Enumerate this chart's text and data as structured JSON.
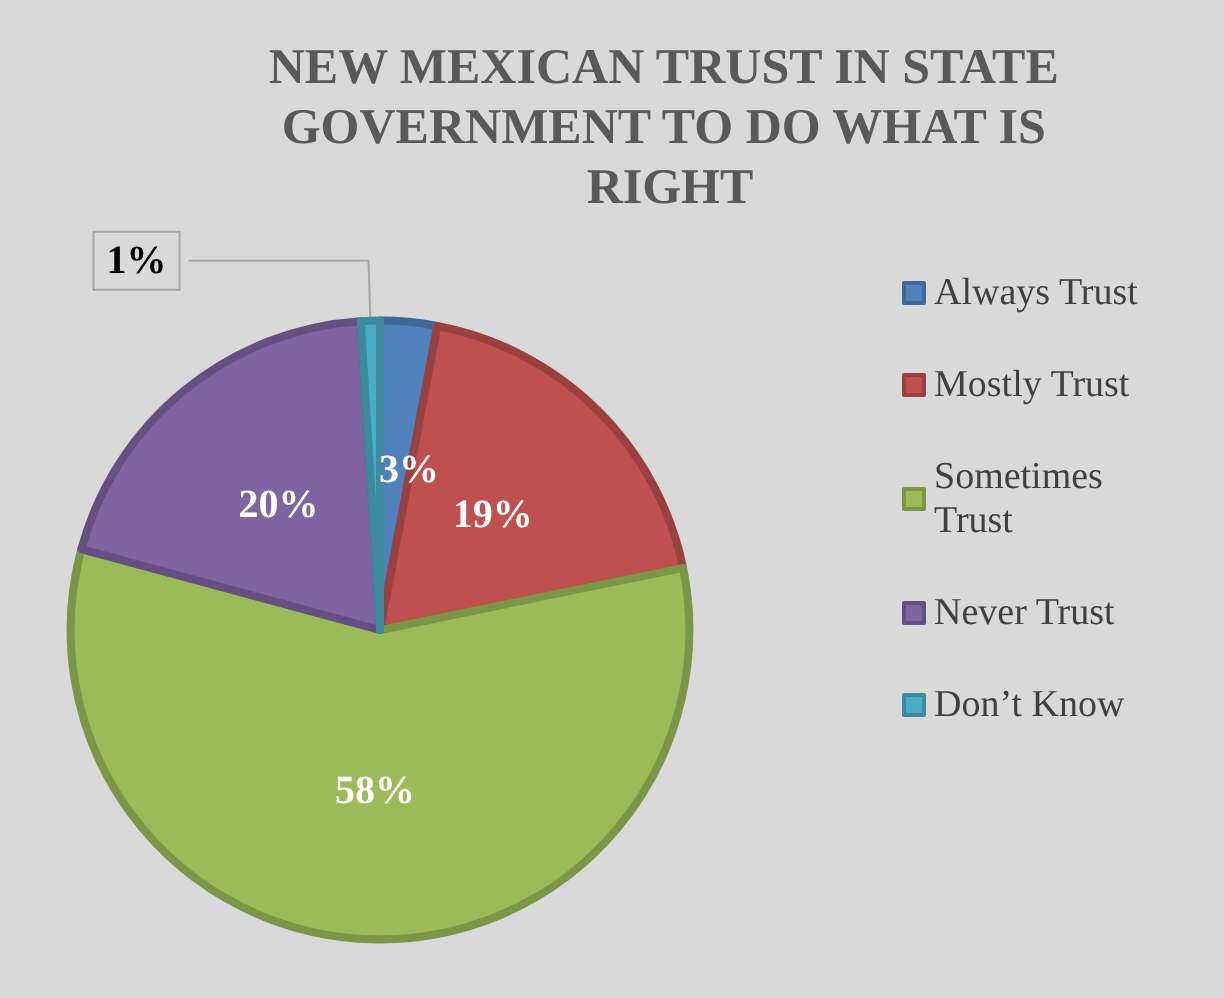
{
  "chart_data": {
    "type": "pie",
    "title": "NEW MEXICAN TRUST IN STATE GOVERNMENT TO DO WHAT IS RIGHT",
    "categories": [
      "Always Trust",
      "Mostly Trust",
      "Sometimes Trust",
      "Never Trust",
      "Don’t Know"
    ],
    "values": [
      3,
      19,
      58,
      20,
      1
    ],
    "colors": [
      "#4f81bd",
      "#c0504d",
      "#9bbb59",
      "#8064a2",
      "#4bacc6"
    ],
    "value_labels": [
      "3%",
      "19%",
      "58%",
      "20%",
      "1%"
    ],
    "legend": "right"
  }
}
